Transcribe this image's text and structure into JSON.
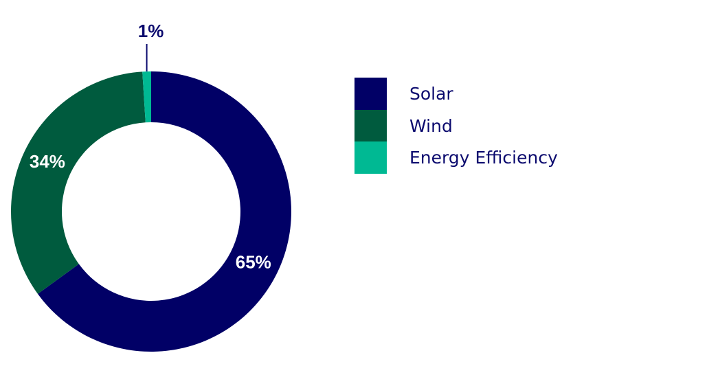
{
  "chart_data": {
    "type": "pie",
    "variant": "donut",
    "categories": [
      "Solar",
      "Wind",
      "Energy Efficiency"
    ],
    "values": [
      65,
      34,
      1
    ],
    "labels": [
      "65%",
      "34%",
      "1%"
    ],
    "colors": [
      "#010066",
      "#005b3e",
      "#00b993"
    ],
    "label_colors": [
      "#ffffff",
      "#ffffff",
      "#0b0a6e"
    ],
    "legend_position": "right",
    "start_angle_deg": 0,
    "direction": "clockwise"
  }
}
